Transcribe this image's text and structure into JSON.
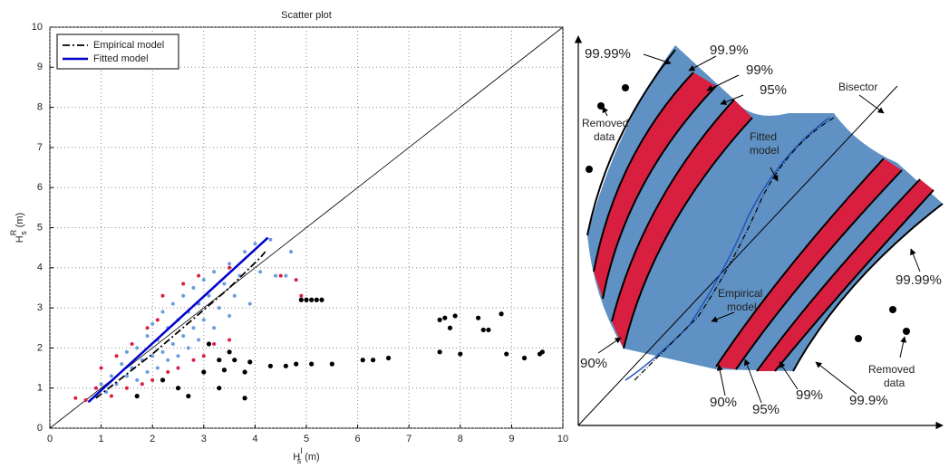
{
  "chart_data": {
    "type": "scatter",
    "title": "Scatter plot",
    "xlabel": {
      "base": "H",
      "sub": "s",
      "sup": "I",
      "unit": "(m)"
    },
    "ylabel": {
      "base": "H",
      "sub": "s",
      "sup": "R",
      "unit": "(m)"
    },
    "xlim": [
      0,
      10
    ],
    "ylim": [
      0,
      10
    ],
    "xticks": [
      0,
      1,
      2,
      3,
      4,
      5,
      6,
      7,
      8,
      9,
      10
    ],
    "yticks": [
      0,
      1,
      2,
      3,
      4,
      5,
      6,
      7,
      8,
      9,
      10
    ],
    "grid": true,
    "legend": "upper left",
    "bisector": true,
    "series": [
      {
        "type": "scatter",
        "color": "#6b9be0",
        "x": [
          0.9,
          1.0,
          1.1,
          1.2,
          1.3,
          1.4,
          1.5,
          1.5,
          1.6,
          1.7,
          1.7,
          1.8,
          1.9,
          1.9,
          2.0,
          2.0,
          2.1,
          2.1,
          2.2,
          2.2,
          2.3,
          2.3,
          2.4,
          2.4,
          2.5,
          2.5,
          2.6,
          2.6,
          2.7,
          2.7,
          2.8,
          2.8,
          2.9,
          2.9,
          3.0,
          3.0,
          3.1,
          3.2,
          3.2,
          3.3,
          3.4,
          3.5,
          3.5,
          3.6,
          3.7,
          3.8,
          3.9,
          4.0,
          4.1,
          4.3,
          4.4,
          4.6,
          4.7
        ],
        "values": [
          0.8,
          1.1,
          0.9,
          1.3,
          1.1,
          1.6,
          1.3,
          1.9,
          1.5,
          1.2,
          2.0,
          1.7,
          1.4,
          2.3,
          1.8,
          2.6,
          1.5,
          2.2,
          2.9,
          1.9,
          2.5,
          1.7,
          3.1,
          2.1,
          2.7,
          1.8,
          3.3,
          2.3,
          2.9,
          2.0,
          3.5,
          2.5,
          3.1,
          2.2,
          3.7,
          2.7,
          3.3,
          2.5,
          3.9,
          3.0,
          3.6,
          4.1,
          2.8,
          3.3,
          3.8,
          4.4,
          3.1,
          4.6,
          3.9,
          4.7,
          3.8,
          3.8,
          4.4
        ]
      },
      {
        "type": "scatter",
        "color": "#d81f3f",
        "x": [
          0.5,
          0.7,
          0.9,
          1.0,
          1.2,
          1.3,
          1.5,
          1.6,
          1.8,
          1.9,
          2.0,
          2.1,
          2.3,
          2.2,
          2.5,
          2.6,
          2.8,
          2.9,
          3.0,
          3.2,
          3.5,
          3.5,
          4.5,
          4.8,
          4.9
        ],
        "values": [
          0.75,
          0.7,
          1.0,
          1.5,
          0.8,
          1.8,
          1.0,
          2.1,
          1.1,
          2.5,
          1.2,
          2.7,
          1.4,
          3.3,
          1.5,
          3.6,
          1.7,
          3.8,
          1.8,
          2.1,
          2.2,
          4.0,
          3.8,
          3.7,
          3.3
        ]
      },
      {
        "type": "scatter",
        "color": "#000000",
        "x": [
          4.9,
          5.0,
          5.1,
          5.2,
          5.3,
          7.6,
          7.7,
          7.8,
          7.9,
          8.35,
          8.45,
          8.55,
          8.8,
          7.6,
          8.0,
          8.9,
          9.25,
          9.55,
          9.6,
          3.3,
          3.6,
          3.9,
          4.3,
          4.6,
          4.8,
          5.1,
          5.5,
          6.1,
          6.3,
          6.6,
          3.0,
          3.4,
          3.8,
          2.2,
          2.7,
          3.3,
          3.8,
          2.5,
          3.1,
          3.5,
          1.7
        ],
        "values": [
          3.2,
          3.2,
          3.2,
          3.2,
          3.2,
          2.7,
          2.75,
          2.5,
          2.8,
          2.75,
          2.45,
          2.45,
          2.85,
          1.9,
          1.85,
          1.85,
          1.75,
          1.85,
          1.9,
          1.7,
          1.7,
          1.65,
          1.55,
          1.55,
          1.6,
          1.6,
          1.6,
          1.7,
          1.7,
          1.75,
          1.4,
          1.45,
          1.4,
          1.2,
          0.8,
          1.0,
          0.75,
          1.0,
          2.1,
          1.9,
          0.8
        ]
      },
      {
        "type": "line",
        "name": "Empirical model",
        "color": "#000000",
        "dash": "dashdot",
        "x": [
          0.9,
          1.5,
          2.0,
          3.0,
          3.5,
          4.1,
          4.2
        ],
        "values": [
          0.75,
          1.35,
          1.85,
          2.95,
          3.5,
          4.25,
          4.4
        ]
      },
      {
        "type": "line",
        "name": "Fitted model",
        "color": "#0000cc",
        "dash": "solid",
        "x": [
          0.75,
          4.25
        ],
        "values": [
          0.65,
          4.75
        ]
      }
    ]
  },
  "diagram": {
    "labels": {
      "q9999_top": "99.99%",
      "q999_top": "99.9%",
      "q99_top": "99%",
      "q95_top": "95%",
      "bisector": "Bisector",
      "removed_top": "Removed",
      "removed_top_2": "data",
      "fitted": "Fitted",
      "fitted_2": "model",
      "empirical": "Empirical",
      "empirical_2": "model",
      "q9999_right": "99.99%",
      "q90_left": "90%",
      "q90_bottom": "90%",
      "q95_bottom": "95%",
      "q99_bottom": "99%",
      "q999_bottom": "99.9%",
      "removed_bottom": "Removed",
      "removed_bottom_2": "data"
    }
  }
}
